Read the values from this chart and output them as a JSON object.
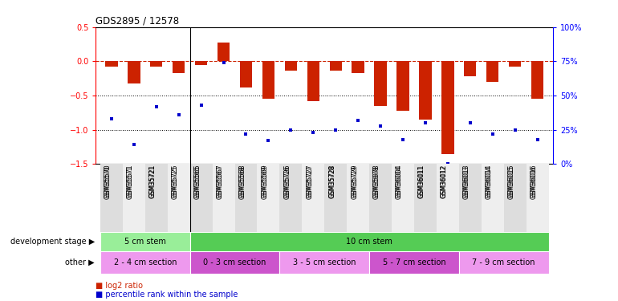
{
  "title": "GDS2895 / 12578",
  "categories": [
    "GSM35570",
    "GSM35571",
    "GSM35721",
    "GSM35725",
    "GSM35565",
    "GSM35567",
    "GSM35568",
    "GSM35569",
    "GSM35726",
    "GSM35727",
    "GSM35728",
    "GSM35729",
    "GSM35978",
    "GSM36004",
    "GSM36011",
    "GSM36012",
    "GSM36013",
    "GSM36014",
    "GSM36015",
    "GSM36016"
  ],
  "log2_ratio": [
    -0.08,
    -0.32,
    -0.08,
    -0.17,
    -0.05,
    0.28,
    -0.38,
    -0.55,
    -0.14,
    -0.58,
    -0.14,
    -0.17,
    -0.65,
    -0.72,
    -0.85,
    -1.35,
    -0.22,
    -0.3,
    -0.08,
    -0.55
  ],
  "percentile": [
    33,
    14,
    42,
    36,
    43,
    74,
    22,
    17,
    25,
    23,
    25,
    32,
    28,
    18,
    30,
    0,
    30,
    22,
    25,
    18
  ],
  "bar_color": "#cc2200",
  "dot_color": "#0000cc",
  "dashed_color": "#cc2200",
  "left_yticks": [
    0.5,
    0.0,
    -0.5,
    -1.0,
    -1.5
  ],
  "right_yticks": [
    0,
    25,
    50,
    75,
    100
  ],
  "right_yticklabels": [
    "0%",
    "25%",
    "50%",
    "75%",
    "100%"
  ],
  "dev_stage_groups": [
    {
      "label": "5 cm stem",
      "start": 0,
      "end": 4,
      "color": "#99ee99"
    },
    {
      "label": "10 cm stem",
      "start": 4,
      "end": 20,
      "color": "#55cc55"
    }
  ],
  "other_groups": [
    {
      "label": "2 - 4 cm section",
      "start": 0,
      "end": 4,
      "color": "#ee99ee"
    },
    {
      "label": "0 - 3 cm section",
      "start": 4,
      "end": 8,
      "color": "#cc55cc"
    },
    {
      "label": "3 - 5 cm section",
      "start": 8,
      "end": 12,
      "color": "#ee99ee"
    },
    {
      "label": "5 - 7 cm section",
      "start": 12,
      "end": 16,
      "color": "#cc55cc"
    },
    {
      "label": "7 - 9 cm section",
      "start": 16,
      "end": 20,
      "color": "#ee99ee"
    }
  ],
  "legend_bar_label": "log2 ratio",
  "legend_dot_label": "percentile rank within the sample",
  "dev_stage_label": "development stage",
  "other_label": "other"
}
